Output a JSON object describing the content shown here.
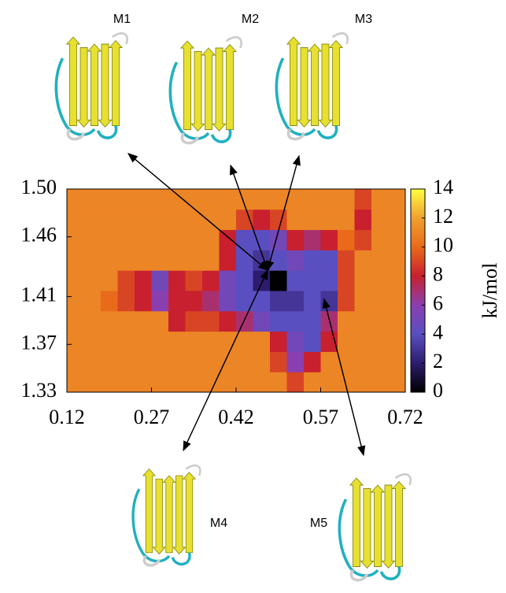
{
  "chart_data": {
    "type": "heatmap",
    "xbins": [
      0.12,
      0.15,
      0.18,
      0.21,
      0.24,
      0.27,
      0.3,
      0.33,
      0.36,
      0.39,
      0.42,
      0.45,
      0.48,
      0.51,
      0.54,
      0.57,
      0.6,
      0.63,
      0.66,
      0.69,
      0.72
    ],
    "ybins": [
      1.33,
      1.347,
      1.364,
      1.381,
      1.398,
      1.415,
      1.432,
      1.449,
      1.466,
      1.483,
      1.5
    ],
    "z": [
      [
        11,
        11,
        11,
        11,
        11,
        11,
        11,
        11,
        11,
        11,
        11,
        11,
        11,
        9,
        11,
        11,
        11,
        11,
        11,
        11
      ],
      [
        11,
        11,
        11,
        11,
        11,
        11,
        11,
        11,
        11,
        11,
        11,
        11,
        9,
        6,
        8,
        11,
        11,
        11,
        11,
        11
      ],
      [
        11,
        11,
        11,
        11,
        11,
        11,
        11,
        11,
        11,
        11,
        11,
        11,
        8,
        5,
        4,
        8,
        11,
        11,
        11,
        11
      ],
      [
        11,
        11,
        11,
        11,
        11,
        11,
        8,
        9,
        9,
        8,
        7,
        5,
        4,
        4,
        4,
        7,
        11,
        11,
        11,
        11
      ],
      [
        11,
        11,
        10,
        9,
        8,
        6,
        8,
        8,
        7,
        5,
        4,
        4,
        3,
        3,
        4,
        3,
        9,
        11,
        11,
        11
      ],
      [
        11,
        11,
        11,
        9,
        8,
        5,
        8,
        9,
        8,
        5,
        4,
        2,
        0,
        4,
        4,
        4,
        9,
        11,
        11,
        11
      ],
      [
        11,
        11,
        11,
        11,
        11,
        11,
        11,
        11,
        11,
        8,
        4,
        3,
        4,
        5,
        4,
        4,
        9,
        11,
        11,
        11
      ],
      [
        11,
        11,
        11,
        11,
        11,
        11,
        11,
        11,
        11,
        8,
        4,
        4,
        5,
        8,
        7,
        8,
        10,
        9,
        11,
        11
      ],
      [
        11,
        11,
        11,
        11,
        11,
        11,
        11,
        11,
        11,
        11,
        9,
        8,
        9,
        11,
        11,
        11,
        11,
        8,
        11,
        11
      ],
      [
        11,
        11,
        11,
        11,
        11,
        11,
        11,
        11,
        11,
        11,
        11,
        11,
        11,
        11,
        11,
        11,
        11,
        9,
        11,
        11
      ]
    ],
    "colorscale": [
      "#000000",
      "#2d1b6e",
      "#5a4fc0",
      "#8a3fb0",
      "#c8202e",
      "#e86a1a",
      "#f0a030",
      "#ffff40"
    ],
    "xlim": [
      0.12,
      0.72
    ],
    "ylim": [
      1.33,
      1.5
    ],
    "xticks": [
      0.12,
      0.27,
      0.42,
      0.57,
      0.72
    ],
    "yticks": [
      1.33,
      1.37,
      1.41,
      1.46,
      {
        "value": 1.5,
        "label": "1.50"
      }
    ],
    "zlim": [
      0,
      14
    ],
    "zticks": [
      0,
      2,
      4,
      6,
      8,
      10,
      12,
      14
    ],
    "colorbar_label": "kJ/mol",
    "annotations": [
      {
        "text": "M1",
        "x": 0.476,
        "y": 1.432
      },
      {
        "text": "M2",
        "x": 0.476,
        "y": 1.432
      },
      {
        "text": "M3",
        "x": 0.476,
        "y": 1.432
      },
      {
        "text": "M4",
        "x": 0.476,
        "y": 1.432
      },
      {
        "text": "M5",
        "x": 0.576,
        "y": 1.408
      }
    ]
  }
}
